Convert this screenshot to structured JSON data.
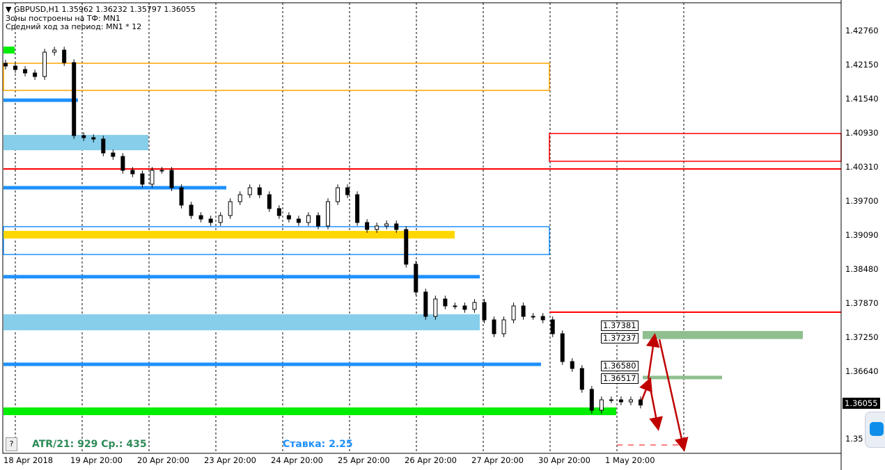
{
  "header": {
    "symbol_line": "GBPUSD,H1  1.35962 1.36232 1.35797 1.36055",
    "zones_line": "Зоны построены на ТФ: MN1",
    "avg_line": "Средний ход за период: MN1 * 12"
  },
  "info": {
    "atr": "ATR/21: 929  Ср.: 435",
    "rate": "Ставка: 2.25",
    "help": "?"
  },
  "level_labels": [
    "1.37381",
    "1.37237",
    "1.36580",
    "1.36517"
  ],
  "current_price": "1.36055",
  "colors": {
    "up_zone": "#8fbf8f",
    "arrow": "#c00000",
    "support": "#00ee00",
    "blue_level": "#1e90ff",
    "red_level": "#ff0000",
    "orange_zone": "#ffa500",
    "gold_zone": "#ffd700"
  },
  "chart_data": {
    "type": "candlestick",
    "title": "GBPUSD,H1",
    "x_tick_labels": [
      "18 Apr 2018",
      "19 Apr 20:00",
      "20 Apr 20:00",
      "23 Apr 20:00",
      "24 Apr 20:00",
      "25 Apr 20:00",
      "26 Apr 20:00",
      "27 Apr 20:00",
      "30 Apr 20:00",
      "1 May 20:00"
    ],
    "y_tick_labels": [
      "1.42760",
      "1.42150",
      "1.41540",
      "1.40930",
      "1.40310",
      "1.39700",
      "1.39090",
      "1.38480",
      "1.37870",
      "1.37250",
      "1.36640",
      "1.35"
    ],
    "ylim": [
      1.35,
      1.433
    ],
    "grid": true,
    "closes": [
      1.42125,
      1.42063,
      1.42001,
      1.41938,
      1.42374,
      1.42411,
      1.42187,
      1.4088,
      1.40843,
      1.40818,
      1.40569,
      1.40507,
      1.40258,
      1.40195,
      1.40009,
      1.40258,
      1.40258,
      1.39946,
      1.39635,
      1.39448,
      1.39386,
      1.39324,
      1.39448,
      1.39697,
      1.39822,
      1.39946,
      1.39822,
      1.39573,
      1.39448,
      1.39386,
      1.39324,
      1.39448,
      1.39262,
      1.39697,
      1.39946,
      1.39822,
      1.39324,
      1.39199,
      1.39262,
      1.39299,
      1.39199,
      1.38577,
      1.38079,
      1.37643,
      1.37954,
      1.3783,
      1.3783,
      1.37768,
      1.37892,
      1.37581,
      1.37332,
      1.37581,
      1.3783,
      1.37643,
      1.37643,
      1.37581,
      1.37332,
      1.36834,
      1.3671,
      1.36336,
      1.35962,
      1.36149,
      1.36149,
      1.36112,
      1.36149,
      1.36055
    ],
    "zones": [
      {
        "kind": "box",
        "color": "#ffa500",
        "top": 1.42175,
        "bottom": 1.41689
      },
      {
        "kind": "box",
        "color": "#ff0000",
        "top": 1.40917,
        "bottom": 1.4042
      },
      {
        "kind": "box",
        "color": "#1e90ff",
        "top": 1.39249,
        "bottom": 1.38751
      },
      {
        "kind": "fill",
        "color": "#87ceeb",
        "top": 1.40892,
        "bottom": 1.40618
      },
      {
        "kind": "fill",
        "color": "#87ceeb",
        "top": 1.3768,
        "bottom": 1.37394
      },
      {
        "kind": "fill",
        "color": "#ffd700",
        "top": 1.39174,
        "bottom": 1.39037
      },
      {
        "kind": "fill",
        "color": "#00ee00",
        "top": 1.36012,
        "bottom": 1.35875
      },
      {
        "kind": "fill",
        "color": "#00ee00",
        "top": 1.42474,
        "bottom": 1.42349
      },
      {
        "kind": "fill",
        "color": "#8fbf8f",
        "top": 1.37381,
        "bottom": 1.37237
      },
      {
        "kind": "fill",
        "color": "#8fbf8f",
        "top": 1.3658,
        "bottom": 1.36517
      }
    ],
    "levels": [
      {
        "color": "#ff0000",
        "price": 1.40283
      },
      {
        "color": "#ff0000",
        "price": 1.37718
      },
      {
        "color": "#1e90ff",
        "price": 1.41514
      },
      {
        "color": "#1e90ff",
        "price": 1.39946
      },
      {
        "color": "#1e90ff",
        "price": 1.38353
      },
      {
        "color": "#1e90ff",
        "price": 1.36785
      }
    ]
  }
}
